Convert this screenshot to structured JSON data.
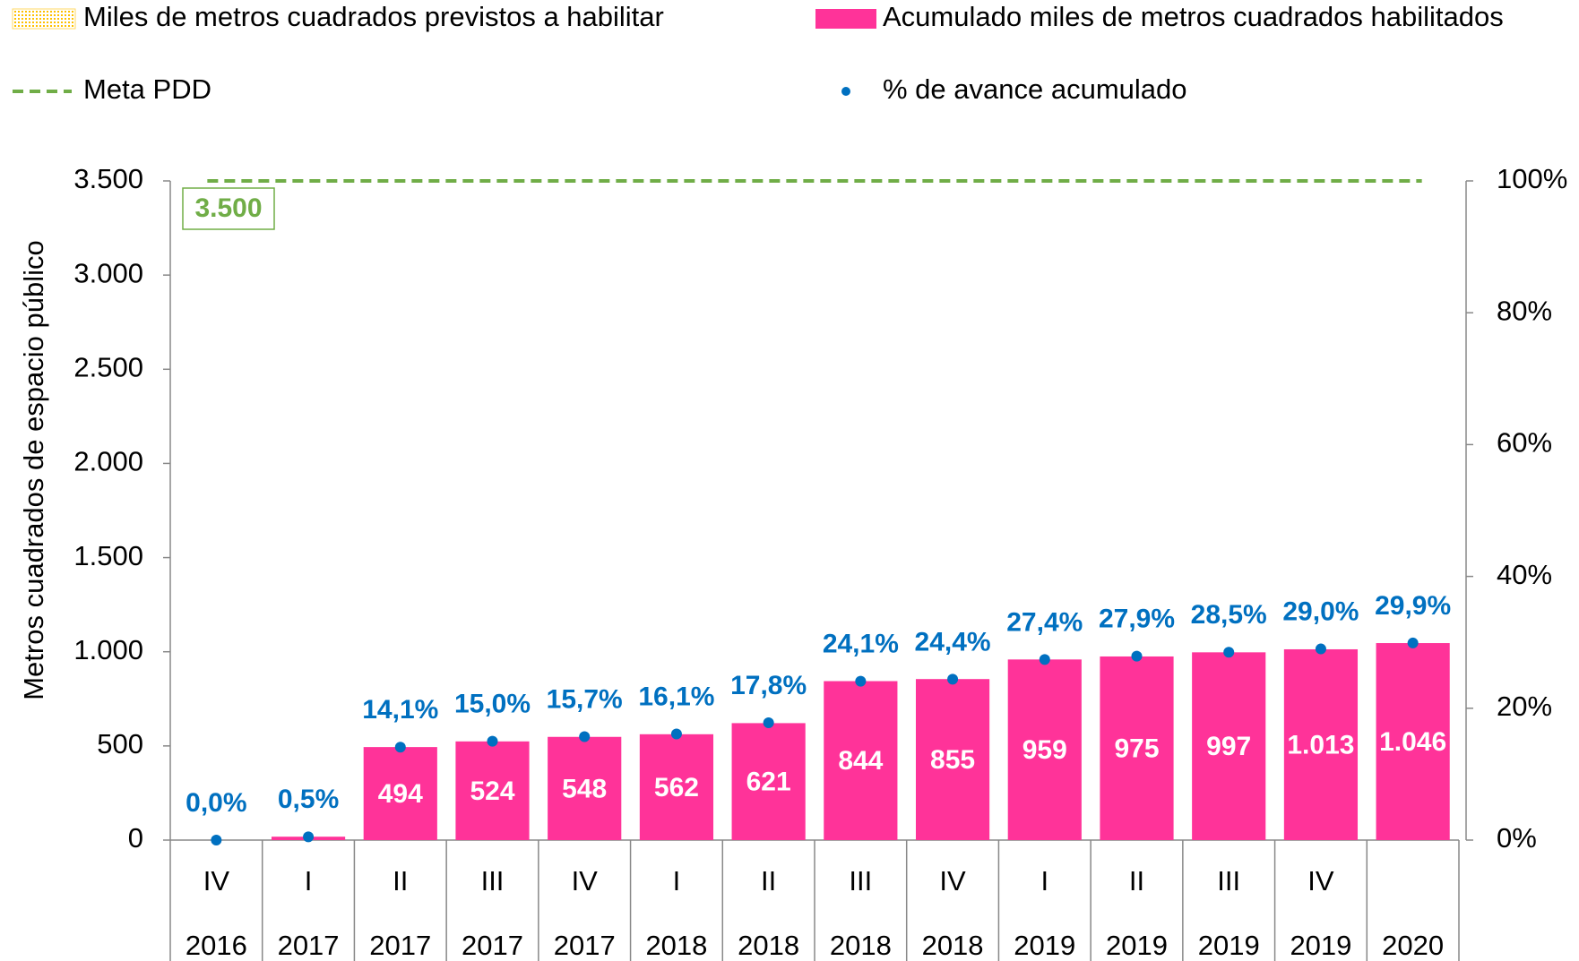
{
  "chart_data": {
    "type": "bar",
    "y_label": "Metros cuadrados de espacio público",
    "categories": [
      "IV",
      "I",
      "II",
      "III",
      "IV",
      "I",
      "II",
      "III",
      "IV",
      "I",
      "II",
      "III",
      "IV",
      null
    ],
    "years": [
      "2016",
      "2017",
      "2017",
      "2017",
      "2017",
      "2018",
      "2018",
      "2018",
      "2018",
      "2019",
      "2019",
      "2019",
      "2019",
      "2020"
    ],
    "series": [
      {
        "name": "Miles de metros cuadrados previstos a habilitar",
        "color": "#ffd966"
      },
      {
        "name": "Acumulado miles de metros cuadrados habilitados",
        "color": "#ff3399",
        "values": [
          0,
          18,
          494,
          524,
          548,
          562,
          621,
          844,
          855,
          959,
          975,
          997,
          1013,
          1046
        ],
        "value_labels": [
          null,
          null,
          "494",
          "524",
          "548",
          "562",
          "621",
          "844",
          "855",
          "959",
          "975",
          "997",
          "1.013",
          "1.046"
        ]
      },
      {
        "name": "Meta PDD",
        "color": "#70ad47",
        "value": 3500,
        "value_label": "3.500"
      },
      {
        "name": "% de avance acumulado",
        "color": "#0070c0",
        "axis": "y2",
        "values": [
          0,
          0.5,
          14.1,
          15.0,
          15.7,
          16.1,
          17.8,
          24.1,
          24.4,
          27.4,
          27.9,
          28.5,
          29.0,
          29.9
        ],
        "value_labels": [
          "0,0%",
          "0,5%",
          "14,1%",
          "15,0%",
          "15,7%",
          "16,1%",
          "17,8%",
          "24,1%",
          "24,4%",
          "27,4%",
          "27,9%",
          "28,5%",
          "29,0%",
          "29,9%"
        ]
      }
    ],
    "ylim": [
      0,
      3500
    ],
    "yticks": [
      0,
      500,
      {
        "value": 1000,
        "label": "1.000"
      },
      {
        "value": 1500,
        "label": "1.500"
      },
      {
        "value": 2000,
        "label": "2.000"
      },
      {
        "value": 2500,
        "label": "2.500"
      },
      {
        "value": 3000,
        "label": "3.000"
      },
      {
        "value": 3500,
        "label": "3.500"
      }
    ],
    "y2lim": [
      0,
      100
    ],
    "y2ticks": [
      {
        "value": 0,
        "label": "0%"
      },
      {
        "value": 20,
        "label": "20%"
      },
      {
        "value": 40,
        "label": "40%"
      },
      {
        "value": 60,
        "label": "60%"
      },
      {
        "value": 80,
        "label": "80%"
      },
      {
        "value": 100,
        "label": "100%"
      }
    ]
  }
}
